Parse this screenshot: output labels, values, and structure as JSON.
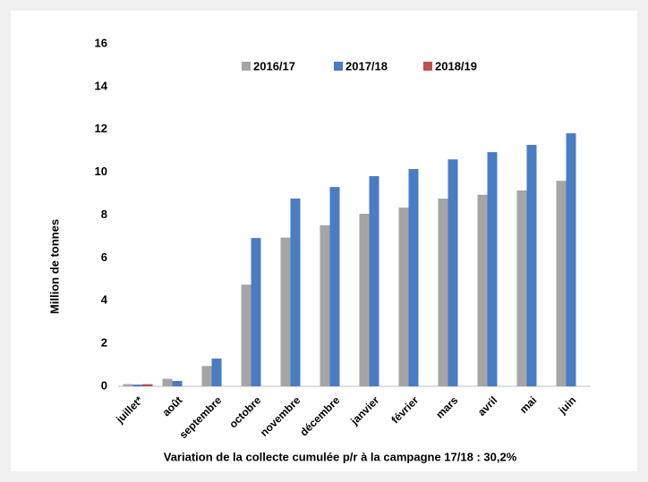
{
  "chart_data": {
    "type": "bar",
    "categories": [
      "juillet*",
      "août",
      "septembre",
      "octobre",
      "novembre",
      "décembre",
      "janvier",
      "février",
      "mars",
      "avril",
      "mai",
      "juin"
    ],
    "series": [
      {
        "name": "2016/17",
        "color": "#a5a5a5",
        "values": [
          0.1,
          0.35,
          0.95,
          4.75,
          6.95,
          7.52,
          8.06,
          8.35,
          8.77,
          8.95,
          9.15,
          9.6
        ]
      },
      {
        "name": "2017/18",
        "color": "#4a7cc4",
        "values": [
          0.08,
          0.25,
          1.3,
          6.93,
          8.77,
          9.31,
          9.82,
          10.15,
          10.6,
          10.94,
          11.28,
          11.82
        ]
      },
      {
        "name": "2018/19",
        "color": "#c0504d",
        "values": [
          0.1,
          null,
          null,
          null,
          null,
          null,
          null,
          null,
          null,
          null,
          null,
          null
        ]
      }
    ],
    "y_label": "Million de tonnes",
    "note": "Variation de la collecte cumulée p/r à la campagne 17/18 : 30,2%",
    "ylim": [
      0,
      16
    ],
    "yticks": [
      0,
      2,
      4,
      6,
      8,
      10,
      12,
      14,
      16
    ],
    "legend": "top"
  }
}
